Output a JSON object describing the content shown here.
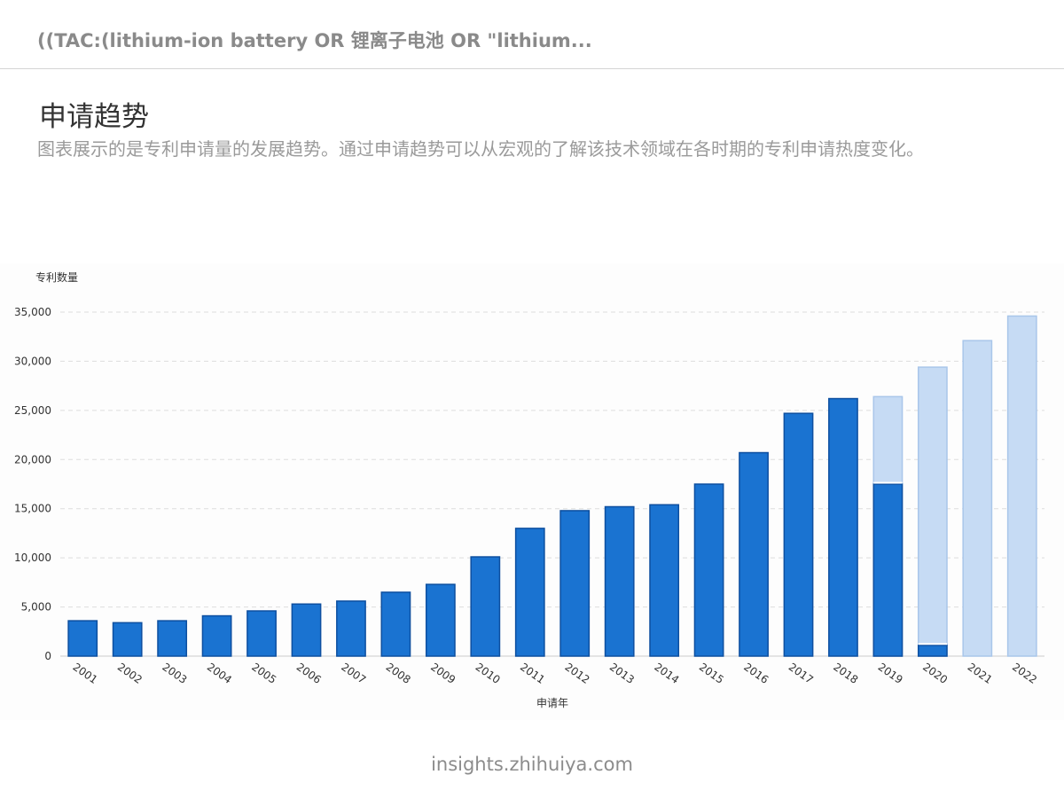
{
  "header": {
    "query": "((TAC:(lithium-ion battery OR 锂离子电池 OR \"lithium..."
  },
  "section": {
    "title": "申请趋势",
    "description": "图表展示的是专利申请量的发展趋势。通过申请趋势可以从宏观的了解该技术领域在各时期的专利申请热度变化。"
  },
  "chart_data": {
    "type": "bar",
    "title": "",
    "ylabel": "专利数量",
    "xlabel": "申请年",
    "ylim": [
      0,
      35000
    ],
    "yticks": [
      0,
      5000,
      10000,
      15000,
      20000,
      25000,
      30000,
      35000
    ],
    "ytick_labels": [
      "0",
      "5,000",
      "10,000",
      "15,000",
      "20,000",
      "25,000",
      "30,000",
      "35,000"
    ],
    "grid": true,
    "categories": [
      "2001",
      "2002",
      "2003",
      "2004",
      "2005",
      "2006",
      "2007",
      "2008",
      "2009",
      "2010",
      "2011",
      "2012",
      "2013",
      "2014",
      "2015",
      "2016",
      "2017",
      "2018",
      "2019",
      "2020",
      "2021",
      "2022"
    ],
    "series": [
      {
        "values": [
          3600,
          3400,
          3600,
          4100,
          4600,
          5300,
          5600,
          6500,
          7300,
          10100,
          13000,
          14800,
          15200,
          15400,
          17500,
          20700,
          24700,
          26200,
          17500,
          1100,
          0,
          0
        ],
        "color": "#1a73d1"
      },
      {
        "values": [
          0,
          0,
          0,
          0,
          0,
          0,
          0,
          0,
          0,
          0,
          0,
          0,
          0,
          0,
          0,
          0,
          0,
          0,
          26400,
          29400,
          32100,
          34600
        ],
        "color": "#c6dbf4"
      }
    ],
    "colors": {
      "bar": "#1a73d1",
      "bar_edge": "#0d4fa0",
      "bar_light": "#c6dbf4",
      "bar_light_edge": "#a9c6ea",
      "grid": "#dddddd",
      "text": "#333333"
    }
  },
  "footer": {
    "source": "insights.zhihuiya.com"
  }
}
